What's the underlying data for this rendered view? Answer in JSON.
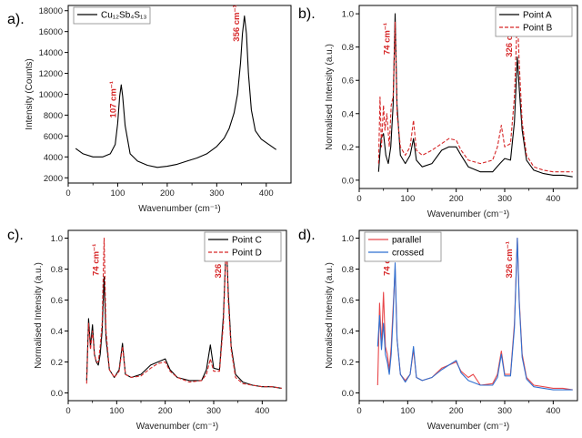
{
  "chart_data": [
    {
      "panel_label": "a).",
      "type": "line",
      "xlabel": "Wavenumber (cm⁻¹)",
      "ylabel": "Intensity (Counts)",
      "xlim": [
        0,
        450
      ],
      "ylim": [
        1500,
        18500
      ],
      "xticks": [
        0,
        100,
        200,
        300,
        400
      ],
      "yticks": [
        2000,
        4000,
        6000,
        8000,
        10000,
        12000,
        14000,
        16000,
        18000
      ],
      "legend": {
        "position": "top-left",
        "entries": [
          "Cu₁₂Sb₄S₁₃"
        ]
      },
      "annotations": [
        {
          "text": "107 cm⁻¹",
          "x": 107
        },
        {
          "text": "356 cm⁻¹",
          "x": 356
        }
      ],
      "series": [
        {
          "name": "Cu₁₂Sb₄S₁₃",
          "color": "#000000",
          "style": "solid",
          "x": [
            15,
            30,
            50,
            70,
            85,
            95,
            100,
            104,
            107,
            110,
            115,
            125,
            140,
            160,
            180,
            200,
            220,
            240,
            260,
            280,
            300,
            315,
            325,
            335,
            342,
            348,
            352,
            356,
            360,
            364,
            370,
            378,
            390,
            405,
            420
          ],
          "y": [
            4800,
            4300,
            4000,
            4000,
            4300,
            5200,
            7200,
            9800,
            10900,
            9800,
            7000,
            4300,
            3600,
            3200,
            3000,
            3100,
            3300,
            3600,
            3900,
            4300,
            5000,
            5800,
            6700,
            8200,
            10000,
            13000,
            15800,
            17500,
            15800,
            12000,
            8500,
            6500,
            5700,
            5200,
            4700
          ]
        }
      ]
    },
    {
      "panel_label": "b).",
      "type": "line",
      "xlabel": "Wavenumber (cm⁻¹)",
      "ylabel": "Normalised Intensity (a.u.)",
      "xlim": [
        0,
        450
      ],
      "ylim": [
        -0.05,
        1.05
      ],
      "xticks": [
        0,
        100,
        200,
        300,
        400
      ],
      "yticks": [
        0.0,
        0.2,
        0.4,
        0.6,
        0.8,
        1.0
      ],
      "legend": {
        "position": "top-right",
        "entries": [
          "Point A",
          "Point B"
        ]
      },
      "annotations": [
        {
          "text": "74 cm⁻¹",
          "x": 74
        },
        {
          "text": "326 cm⁻¹",
          "x": 326
        }
      ],
      "series": [
        {
          "name": "Point A",
          "color": "#000000",
          "style": "solid",
          "x": [
            40,
            45,
            50,
            55,
            60,
            65,
            70,
            74,
            78,
            85,
            95,
            105,
            112,
            118,
            130,
            150,
            170,
            185,
            200,
            210,
            225,
            250,
            275,
            290,
            300,
            312,
            320,
            326,
            330,
            336,
            345,
            360,
            380,
            400,
            420,
            440
          ],
          "y": [
            0.05,
            0.25,
            0.28,
            0.15,
            0.1,
            0.2,
            0.45,
            1.0,
            0.45,
            0.15,
            0.1,
            0.15,
            0.25,
            0.12,
            0.08,
            0.1,
            0.18,
            0.2,
            0.2,
            0.15,
            0.08,
            0.05,
            0.05,
            0.1,
            0.13,
            0.12,
            0.35,
            0.74,
            0.55,
            0.3,
            0.12,
            0.06,
            0.04,
            0.03,
            0.03,
            0.02
          ]
        },
        {
          "name": "Point B",
          "color": "#d62728",
          "style": "dashed",
          "x": [
            40,
            43,
            46,
            50,
            53,
            57,
            62,
            66,
            70,
            74,
            78,
            85,
            95,
            105,
            112,
            118,
            130,
            150,
            170,
            185,
            200,
            210,
            225,
            250,
            275,
            285,
            293,
            300,
            312,
            320,
            326,
            330,
            336,
            345,
            360,
            380,
            400,
            420,
            440
          ],
          "y": [
            0.1,
            0.5,
            0.2,
            0.45,
            0.3,
            0.4,
            0.2,
            0.45,
            0.5,
            0.95,
            0.4,
            0.2,
            0.15,
            0.2,
            0.36,
            0.18,
            0.15,
            0.18,
            0.22,
            0.25,
            0.24,
            0.18,
            0.12,
            0.1,
            0.12,
            0.2,
            0.33,
            0.2,
            0.22,
            0.5,
            1.0,
            0.7,
            0.35,
            0.15,
            0.08,
            0.06,
            0.05,
            0.05,
            0.05
          ]
        }
      ]
    },
    {
      "panel_label": "c).",
      "type": "line",
      "xlabel": "Wavenumber (cm⁻¹)",
      "ylabel": "Normalised Intensity (a.u.)",
      "xlim": [
        0,
        450
      ],
      "ylim": [
        -0.05,
        1.05
      ],
      "xticks": [
        0,
        100,
        200,
        300,
        400
      ],
      "yticks": [
        0.0,
        0.2,
        0.4,
        0.6,
        0.8,
        1.0
      ],
      "legend": {
        "position": "top-right",
        "entries": [
          "Point C",
          "Point D"
        ]
      },
      "annotations": [
        {
          "text": "74 cm⁻¹",
          "x": 74
        },
        {
          "text": "326 cm⁻¹",
          "x": 326
        }
      ],
      "series": [
        {
          "name": "Point C",
          "color": "#000000",
          "style": "solid",
          "x": [
            38,
            42,
            46,
            50,
            54,
            58,
            62,
            66,
            70,
            74,
            78,
            85,
            95,
            105,
            112,
            118,
            130,
            150,
            170,
            185,
            200,
            210,
            225,
            250,
            275,
            285,
            293,
            300,
            312,
            320,
            326,
            330,
            336,
            345,
            360,
            380,
            400,
            420,
            440
          ],
          "y": [
            0.08,
            0.48,
            0.3,
            0.44,
            0.25,
            0.2,
            0.18,
            0.25,
            0.4,
            0.75,
            0.35,
            0.15,
            0.1,
            0.15,
            0.32,
            0.12,
            0.1,
            0.12,
            0.18,
            0.2,
            0.22,
            0.15,
            0.1,
            0.08,
            0.08,
            0.15,
            0.31,
            0.16,
            0.15,
            0.5,
            1.0,
            0.65,
            0.3,
            0.12,
            0.07,
            0.05,
            0.04,
            0.04,
            0.03
          ]
        },
        {
          "name": "Point D",
          "color": "#d62728",
          "style": "dashed",
          "x": [
            38,
            42,
            46,
            50,
            54,
            58,
            62,
            66,
            70,
            74,
            78,
            85,
            95,
            105,
            112,
            118,
            130,
            150,
            170,
            185,
            200,
            210,
            225,
            250,
            275,
            285,
            293,
            300,
            312,
            320,
            326,
            330,
            336,
            345,
            360,
            380,
            400,
            420,
            440
          ],
          "y": [
            0.06,
            0.45,
            0.28,
            0.4,
            0.25,
            0.2,
            0.2,
            0.3,
            0.45,
            1.0,
            0.4,
            0.15,
            0.1,
            0.14,
            0.3,
            0.12,
            0.1,
            0.11,
            0.16,
            0.19,
            0.2,
            0.14,
            0.1,
            0.07,
            0.08,
            0.12,
            0.22,
            0.14,
            0.14,
            0.45,
            1.0,
            0.6,
            0.28,
            0.1,
            0.06,
            0.05,
            0.04,
            0.04,
            0.03
          ]
        }
      ]
    },
    {
      "panel_label": "d).",
      "type": "line",
      "xlabel": "Wavenumber (cm⁻¹)",
      "ylabel": "Normalised Intensity (a.u.)",
      "xlim": [
        0,
        450
      ],
      "ylim": [
        -0.05,
        1.05
      ],
      "xticks": [
        0,
        100,
        200,
        300,
        400
      ],
      "yticks": [
        0.0,
        0.2,
        0.4,
        0.6,
        0.8,
        1.0
      ],
      "legend": {
        "position": "top-left",
        "entries": [
          "parallel",
          "crossed"
        ]
      },
      "annotations": [
        {
          "text": "74 cm⁻¹",
          "x": 74
        },
        {
          "text": "326 cm⁻¹",
          "x": 326
        }
      ],
      "series": [
        {
          "name": "parallel",
          "color": "#e8474a",
          "style": "solid",
          "x": [
            38,
            42,
            46,
            50,
            54,
            58,
            62,
            66,
            70,
            74,
            78,
            85,
            95,
            105,
            112,
            118,
            130,
            150,
            170,
            185,
            200,
            210,
            225,
            235,
            250,
            275,
            285,
            293,
            300,
            312,
            320,
            326,
            330,
            336,
            345,
            360,
            380,
            400,
            420,
            440
          ],
          "y": [
            0.05,
            0.58,
            0.3,
            0.65,
            0.3,
            0.25,
            0.15,
            0.3,
            0.55,
            0.8,
            0.35,
            0.12,
            0.08,
            0.12,
            0.28,
            0.1,
            0.08,
            0.1,
            0.16,
            0.18,
            0.2,
            0.14,
            0.1,
            0.12,
            0.05,
            0.06,
            0.12,
            0.27,
            0.12,
            0.12,
            0.45,
            1.0,
            0.6,
            0.25,
            0.1,
            0.05,
            0.04,
            0.03,
            0.03,
            0.02
          ]
        },
        {
          "name": "crossed",
          "color": "#2f6fd0",
          "style": "solid",
          "x": [
            38,
            42,
            46,
            50,
            54,
            58,
            62,
            66,
            70,
            74,
            78,
            85,
            95,
            105,
            112,
            118,
            130,
            150,
            170,
            185,
            200,
            210,
            225,
            250,
            275,
            285,
            293,
            300,
            312,
            320,
            326,
            330,
            336,
            345,
            360,
            380,
            400,
            420,
            440
          ],
          "y": [
            0.3,
            0.5,
            0.28,
            0.45,
            0.25,
            0.2,
            0.12,
            0.25,
            0.5,
            0.84,
            0.35,
            0.12,
            0.07,
            0.12,
            0.3,
            0.1,
            0.08,
            0.1,
            0.15,
            0.18,
            0.21,
            0.13,
            0.08,
            0.05,
            0.05,
            0.1,
            0.25,
            0.11,
            0.11,
            0.42,
            1.0,
            0.58,
            0.23,
            0.09,
            0.04,
            0.03,
            0.02,
            0.02,
            0.02
          ]
        }
      ]
    }
  ]
}
